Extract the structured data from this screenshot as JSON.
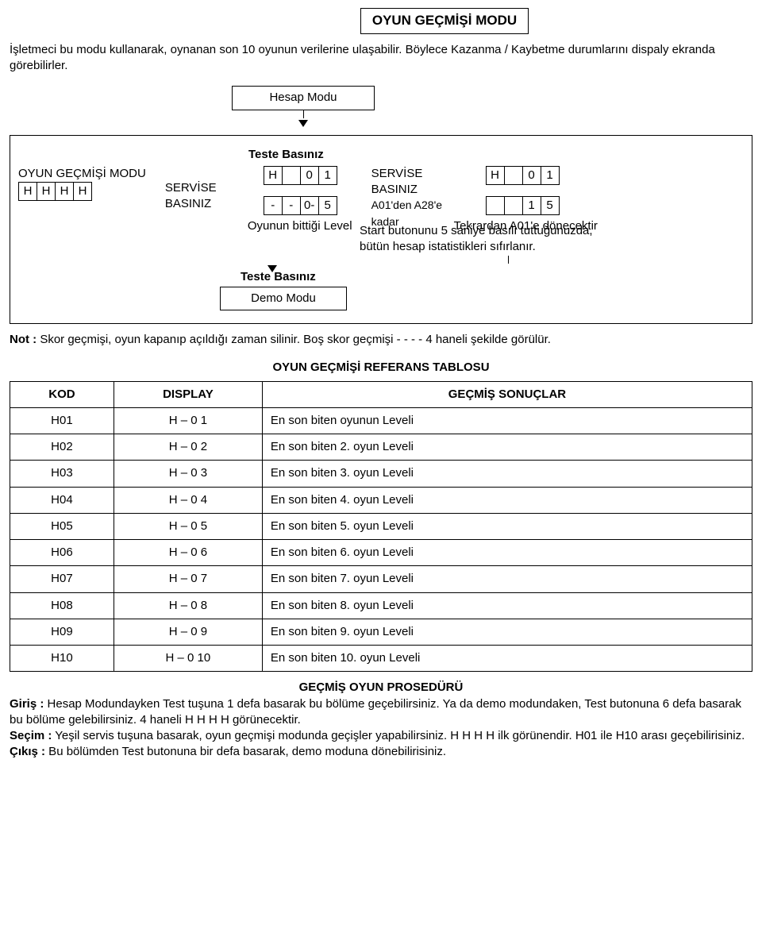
{
  "title": "OYUN GEÇMİŞİ MODU",
  "intro": "İşletmeci bu modu kullanarak, oynanan son 10 oyunun verilerine ulaşabilir. Böylece Kazanma / Kaybetme durumlarını dispaly ekranda görebilirler.",
  "hesap_modu": "Hesap Modu",
  "teste_basiniz": "Teste Basınız",
  "left_label": "OYUN GEÇMİŞİ MODU",
  "left_cells": [
    "H",
    "H",
    "H",
    "H"
  ],
  "servise_basiniz": "SERVİSE BASINIZ",
  "cells_h01": [
    "H",
    "",
    "0",
    "1"
  ],
  "range_note": "A01'den A28'e kadar",
  "cells_level": [
    "-",
    "-",
    "0-",
    "5"
  ],
  "level_label": "Oyunun  bittiği Level",
  "cells_h01_2": [
    "H",
    "",
    "0",
    "1"
  ],
  "cells_15": [
    "",
    "",
    "1",
    "5"
  ],
  "tekrar": "Tekrardan A01'e dönecektir",
  "start_note1": "Start butonunu 5 saniye basılı tuttuğunuzda,",
  "start_note2": "bütün hesap istatistikleri sıfırlanır.",
  "teste_basiniz2": "Teste Basınız",
  "demo_modu": "Demo Modu",
  "note_b": "Not :",
  "note_text": " Skor geçmişi, oyun kapanıp açıldığı zaman silinir. Boş skor geçmişi - - - - 4 haneli şekilde görülür.",
  "ref_title": "OYUN GEÇMİŞİ REFERANS TABLOSU",
  "table": {
    "columns": [
      "KOD",
      "DISPLAY",
      "GEÇMİŞ SONUÇLAR"
    ],
    "col_align": [
      "center",
      "center",
      "center"
    ],
    "rows": [
      [
        "H01",
        "H – 0 1",
        "En son biten oyunun Leveli"
      ],
      [
        "H02",
        "H – 0 2",
        "En son biten 2. oyun Leveli"
      ],
      [
        "H03",
        "H – 0 3",
        "En son biten 3. oyun Leveli"
      ],
      [
        "H04",
        "H – 0 4",
        "En son biten 4. oyun Leveli"
      ],
      [
        "H05",
        "H – 0 5",
        "En son biten 5. oyun Leveli"
      ],
      [
        "H06",
        "H – 0 6",
        "En son biten 6. oyun Leveli"
      ],
      [
        "H07",
        "H – 0 7",
        "En son biten 7. oyun Leveli"
      ],
      [
        "H08",
        "H – 0 8",
        "En son biten 8. oyun Leveli"
      ],
      [
        "H09",
        "H – 0 9",
        "En son biten 9. oyun Leveli"
      ],
      [
        "H10",
        "H – 0 10",
        "En son biten 10. oyun Leveli"
      ]
    ]
  },
  "proc_title": "GEÇMİŞ OYUN PROSEDÜRÜ",
  "proc_giris_b": "Giriş :",
  "proc_giris": "  Hesap Modundayken Test tuşuna 1 defa basarak bu bölüme geçebilirsiniz. Ya da demo modundaken, Test butonuna 6 defa basarak bu bölüme gelebilirsiniz. 4 haneli H H H H görünecektir.",
  "proc_secim_b": "Seçim :",
  "proc_secim": " Yeşil servis tuşuna basarak, oyun geçmişi modunda geçişler yapabilirsiniz. H H H H ilk görünendir. H01 ile H10 arası geçebilirisiniz.",
  "proc_cikis_b": "Çıkış :",
  "proc_cikis": " Bu bölümden Test butonuna bir defa basarak, demo moduna dönebilirisiniz."
}
